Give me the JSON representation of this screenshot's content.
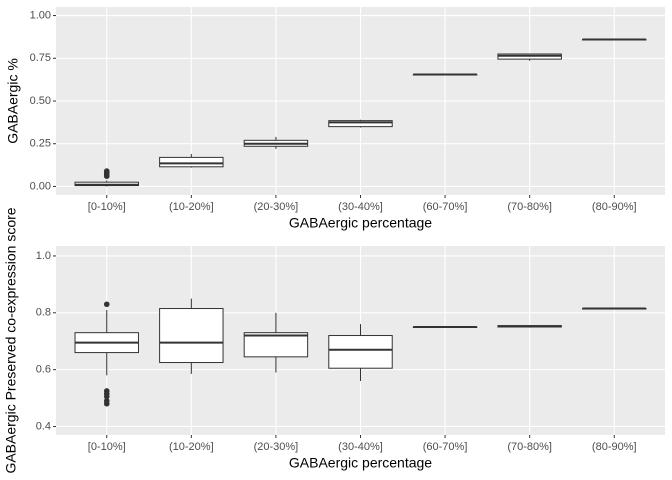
{
  "chart_data": [
    {
      "type": "box",
      "y_label": "GABAergic %",
      "x_label": "GABAergic percentage",
      "categories": [
        "[0-10%]",
        "(10-20%]",
        "(20-30%]",
        "(30-40%]",
        "(60-70%]",
        "(70-80%]",
        "(80-90%]"
      ],
      "boxes": [
        {
          "min": 0,
          "q1": 0.005,
          "median": 0.01,
          "q3": 0.025,
          "max": 0.035,
          "outliers": [
            0.06,
            0.07,
            0.08,
            0.09
          ]
        },
        {
          "min": 0.11,
          "q1": 0.115,
          "median": 0.135,
          "q3": 0.17,
          "max": 0.19,
          "outliers": []
        },
        {
          "min": 0.22,
          "q1": 0.235,
          "median": 0.25,
          "q3": 0.27,
          "max": 0.29,
          "outliers": []
        },
        {
          "min": 0.345,
          "q1": 0.35,
          "median": 0.375,
          "q3": 0.385,
          "max": 0.39,
          "outliers": []
        },
        {
          "min": 0.655,
          "q1": 0.655,
          "median": 0.655,
          "q3": 0.655,
          "max": 0.655,
          "outliers": []
        },
        {
          "min": 0.735,
          "q1": 0.745,
          "median": 0.765,
          "q3": 0.775,
          "max": 0.775,
          "outliers": []
        },
        {
          "min": 0.86,
          "q1": 0.86,
          "median": 0.86,
          "q3": 0.86,
          "max": 0.86,
          "outliers": []
        }
      ],
      "ylim": [
        -0.05,
        1.05
      ],
      "yticks": [
        {
          "value": 0,
          "label": "0.00"
        },
        {
          "value": 0.25,
          "label": "0.25"
        },
        {
          "value": 0.5,
          "label": "0.50"
        },
        {
          "value": 0.75,
          "label": "0.75"
        },
        {
          "value": 1,
          "label": "1.00"
        }
      ],
      "grid": true,
      "color": "#333333"
    },
    {
      "type": "box",
      "y_label": "GABAergic Preserved co-expression score",
      "x_label": "GABAergic percentage",
      "categories": [
        "[0-10%]",
        "(10-20%]",
        "(20-30%]",
        "(30-40%]",
        "(60-70%]",
        "(70-80%]",
        "(80-90%]"
      ],
      "boxes": [
        {
          "min": 0.58,
          "q1": 0.66,
          "median": 0.695,
          "q3": 0.73,
          "max": 0.81,
          "outliers": [
            0.83,
            0.525,
            0.515,
            0.505,
            0.49,
            0.48
          ]
        },
        {
          "min": 0.585,
          "q1": 0.625,
          "median": 0.695,
          "q3": 0.815,
          "max": 0.85,
          "outliers": []
        },
        {
          "min": 0.59,
          "q1": 0.645,
          "median": 0.72,
          "q3": 0.73,
          "max": 0.8,
          "outliers": []
        },
        {
          "min": 0.56,
          "q1": 0.605,
          "median": 0.67,
          "q3": 0.72,
          "max": 0.76,
          "outliers": []
        },
        {
          "min": 0.75,
          "q1": 0.75,
          "median": 0.75,
          "q3": 0.75,
          "max": 0.75,
          "outliers": []
        },
        {
          "min": 0.748,
          "q1": 0.75,
          "median": 0.752,
          "q3": 0.755,
          "max": 0.756,
          "outliers": []
        },
        {
          "min": 0.815,
          "q1": 0.815,
          "median": 0.815,
          "q3": 0.815,
          "max": 0.815,
          "outliers": []
        }
      ],
      "ylim": [
        0.37,
        1.035
      ],
      "yticks": [
        {
          "value": 0.4,
          "label": "0.4"
        },
        {
          "value": 0.6,
          "label": "0.6"
        },
        {
          "value": 0.8,
          "label": "0.8"
        },
        {
          "value": 1,
          "label": "1.0"
        }
      ],
      "grid": true,
      "color": "#333333"
    }
  ]
}
